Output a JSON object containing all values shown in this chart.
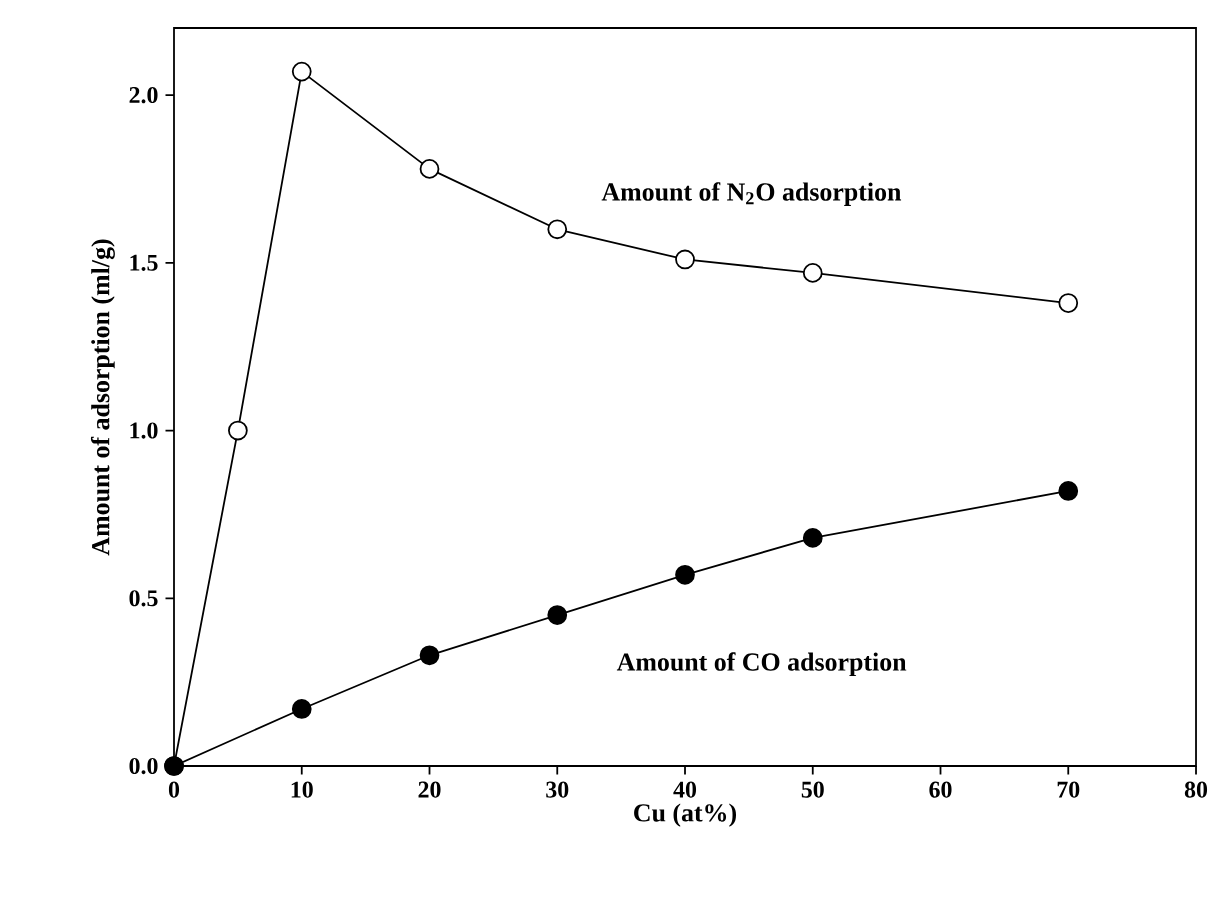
{
  "chart_data": {
    "type": "line",
    "xlabel": "Cu (at%)",
    "ylabel": "Amount of adsorption (ml/g)",
    "xlim": [
      0,
      80
    ],
    "ylim": [
      0,
      2.2
    ],
    "xticks": [
      0,
      10,
      20,
      30,
      40,
      50,
      60,
      70,
      80
    ],
    "yticks": [
      {
        "value": 0,
        "label": "0.0"
      },
      {
        "value": 0.5,
        "label": "0.5"
      },
      {
        "value": 1,
        "label": "1.0"
      },
      {
        "value": 1.5,
        "label": "1.5"
      },
      {
        "value": 2,
        "label": "2.0"
      }
    ],
    "marker": "circle",
    "grid": false,
    "series": [
      {
        "color": "#ffffff",
        "x": [
          0,
          5,
          10,
          20,
          30,
          40,
          50,
          70
        ],
        "values": [
          0,
          1.0,
          2.07,
          1.78,
          1.6,
          1.51,
          1.47,
          1.38
        ]
      },
      {
        "color": "#000000",
        "x": [
          0,
          10,
          20,
          30,
          40,
          50,
          70
        ],
        "values": [
          0,
          0.17,
          0.33,
          0.45,
          0.57,
          0.68,
          0.82
        ]
      }
    ],
    "annotations": [
      "Amount of N$_{2}$O adsorption",
      "Amount of CO adsorption"
    ]
  }
}
